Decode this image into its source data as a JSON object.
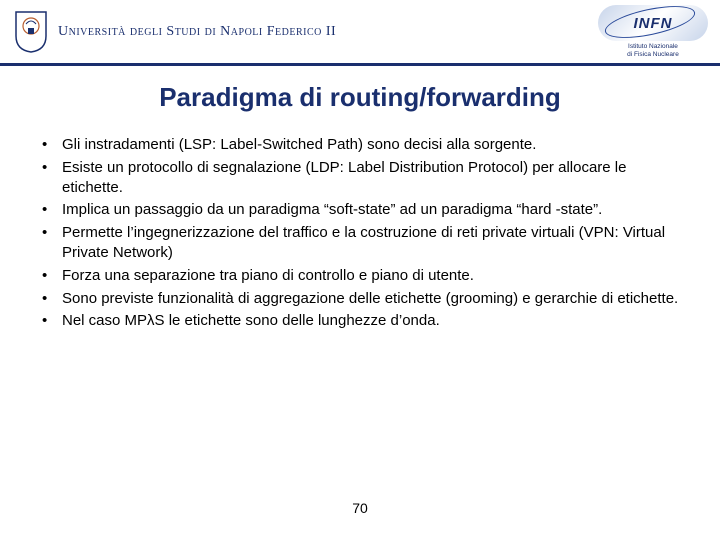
{
  "header": {
    "university_name_html": "U<span class='small'>NIVERSITÀ</span> <span class='small'>DEGLI</span> S<span class='small'>TUDI</span> <span class='small'>DI</span> N<span class='small'>APOLI</span> F<span class='small'>EDERICO</span> II",
    "infn_logo_text": "INFN",
    "infn_subtitle_line1": "Istituto Nazionale",
    "infn_subtitle_line2": "di Fisica Nucleare",
    "crest_color_primary": "#1a2f6e",
    "crest_color_accent": "#b75c2e",
    "header_rule_color": "#1a2f6e"
  },
  "title": "Paradigma di routing/forwarding",
  "title_color": "#1a2f6e",
  "title_fontsize": 26,
  "body_fontsize": 15,
  "body_color": "#000000",
  "bullets": [
    "Gli instradamenti (LSP: Label-Switched Path) sono decisi alla sorgente.",
    "Esiste un protocollo di segnalazione (LDP: Label Distribution Protocol) per allocare le etichette.",
    "Implica un passaggio da un paradigma “soft-state” ad un paradigma “hard -state”.",
    "Permette l’ingegnerizzazione del traffico e la costruzione di reti private virtuali (VPN: Virtual Private Network)",
    "Forza una separazione tra piano di controllo e piano di utente.",
    "Sono previste funzionalità di aggregazione delle etichette (grooming) e gerarchie di etichette.",
    "Nel caso MPλS le etichette sono delle lunghezze d’onda."
  ],
  "page_number": "70",
  "background_color": "#ffffff"
}
